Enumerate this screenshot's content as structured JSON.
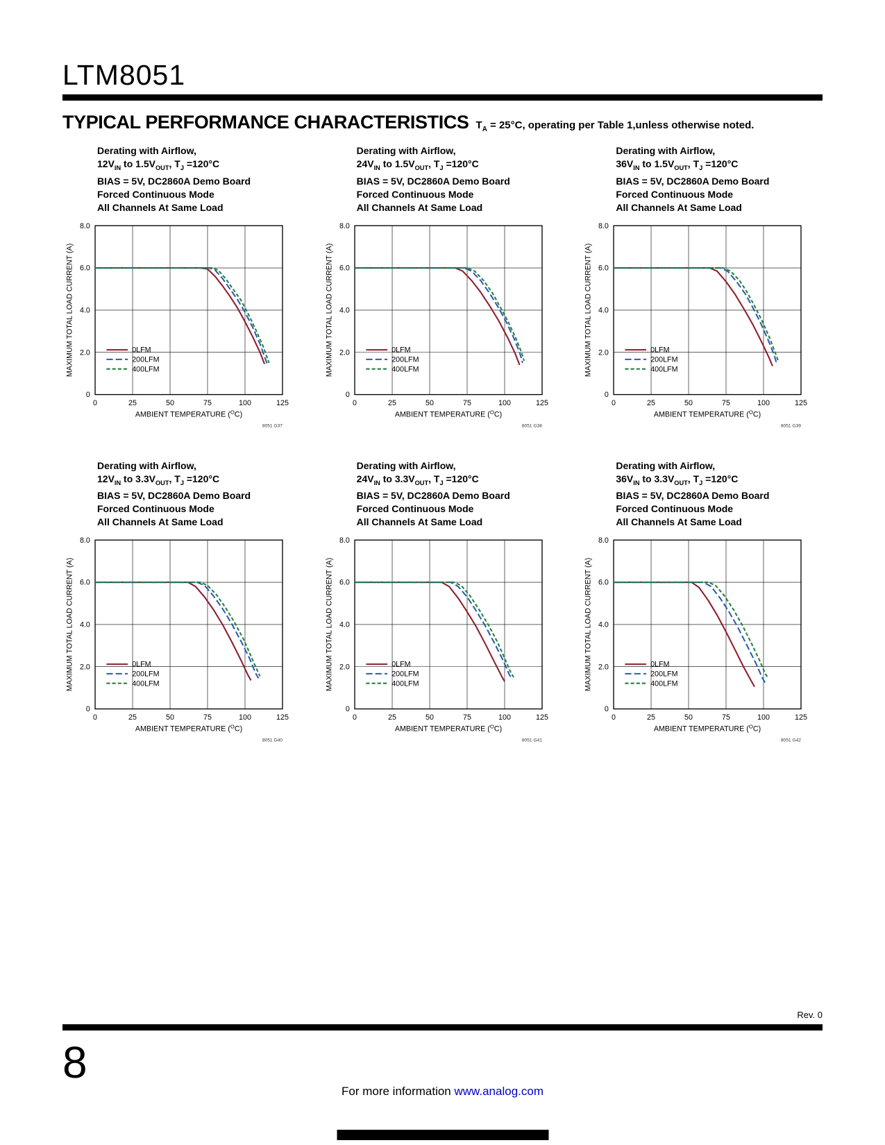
{
  "page": {
    "part_number": "LTM8051",
    "section_title": "TYPICAL PERFORMANCE CHARACTERISTICS",
    "section_note": "T~A~ = 25°C, operating per Table 1,unless otherwise noted.",
    "footer": {
      "rev": "Rev. 0",
      "page_number": "8",
      "info_text": "For more information ",
      "info_link": "www.analog.com",
      "link_color": "#0000cc"
    }
  },
  "chart_common": {
    "type": "line",
    "xlabel": "AMBIENT TEMPERATURE (^O^C)",
    "ylabel": "MAXIMUM TOTAL LOAD CURRENT (A)",
    "xlim": [
      0,
      125
    ],
    "ylim": [
      0,
      8
    ],
    "xticks": [
      0,
      25,
      50,
      75,
      100,
      125
    ],
    "ytick_values": [
      0,
      2,
      4,
      6,
      8
    ],
    "ytick_labels": [
      "0",
      "2.0",
      "4.0",
      "6.0",
      "8.0"
    ],
    "grid": true,
    "legend_position": "lower-left",
    "series_styles": [
      {
        "name": "0LFM",
        "color": "#8e1b2c",
        "dash": []
      },
      {
        "name": "200LFM",
        "color": "#2a5ca9",
        "dash": [
          9,
          4
        ]
      },
      {
        "name": "400LFM",
        "color": "#217f3d",
        "dash": [
          5,
          3
        ]
      }
    ]
  },
  "chart_data": [
    {
      "type": "line",
      "graph_id": "8051 G37",
      "title_lines": [
        "Derating with Airflow,",
        "12V~IN~ to 1.5V~OUT~, T~J~ =120°C",
        "BIAS = 5V, DC2860A Demo Board",
        "Forced Continuous Mode",
        "All Channels At Same Load"
      ],
      "series": [
        {
          "name": "0LFM",
          "points": [
            [
              0,
              6
            ],
            [
              70,
              6
            ],
            [
              75,
              5.95
            ],
            [
              80,
              5.6
            ],
            [
              85,
              5.15
            ],
            [
              90,
              4.65
            ],
            [
              95,
              4.1
            ],
            [
              100,
              3.45
            ],
            [
              105,
              2.75
            ],
            [
              110,
              2.0
            ],
            [
              113,
              1.45
            ]
          ]
        },
        {
          "name": "200LFM",
          "points": [
            [
              0,
              6
            ],
            [
              76,
              6
            ],
            [
              80,
              5.9
            ],
            [
              85,
              5.5
            ],
            [
              90,
              5.0
            ],
            [
              95,
              4.5
            ],
            [
              100,
              3.9
            ],
            [
              105,
              3.2
            ],
            [
              110,
              2.4
            ],
            [
              114,
              1.6
            ],
            [
              115,
              1.4
            ]
          ]
        },
        {
          "name": "400LFM",
          "points": [
            [
              0,
              6
            ],
            [
              78,
              6
            ],
            [
              82,
              5.9
            ],
            [
              87,
              5.5
            ],
            [
              92,
              5.0
            ],
            [
              97,
              4.5
            ],
            [
              102,
              3.85
            ],
            [
              107,
              3.1
            ],
            [
              112,
              2.3
            ],
            [
              115,
              1.7
            ],
            [
              116,
              1.5
            ]
          ]
        }
      ]
    },
    {
      "type": "line",
      "graph_id": "8051 G38",
      "title_lines": [
        "Derating with Airflow,",
        "24V~IN~ to 1.5V~OUT~, T~J~ =120°C",
        "BIAS = 5V, DC2860A Demo Board",
        "Forced Continuous Mode",
        "All Channels At Same Load"
      ],
      "series": [
        {
          "name": "0LFM",
          "points": [
            [
              0,
              6
            ],
            [
              67,
              6
            ],
            [
              72,
              5.85
            ],
            [
              78,
              5.4
            ],
            [
              84,
              4.85
            ],
            [
              90,
              4.2
            ],
            [
              96,
              3.5
            ],
            [
              102,
              2.7
            ],
            [
              107,
              1.95
            ],
            [
              110,
              1.4
            ]
          ]
        },
        {
          "name": "200LFM",
          "points": [
            [
              0,
              6
            ],
            [
              73,
              6
            ],
            [
              78,
              5.85
            ],
            [
              84,
              5.4
            ],
            [
              90,
              4.8
            ],
            [
              96,
              4.1
            ],
            [
              101,
              3.45
            ],
            [
              106,
              2.7
            ],
            [
              110,
              2.0
            ],
            [
              112,
              1.5
            ]
          ]
        },
        {
          "name": "400LFM",
          "points": [
            [
              0,
              6
            ],
            [
              75,
              6
            ],
            [
              80,
              5.85
            ],
            [
              86,
              5.4
            ],
            [
              92,
              4.8
            ],
            [
              97,
              4.15
            ],
            [
              102,
              3.5
            ],
            [
              107,
              2.75
            ],
            [
              111,
              2.05
            ],
            [
              113,
              1.6
            ]
          ]
        }
      ]
    },
    {
      "type": "line",
      "graph_id": "8051 G39",
      "title_lines": [
        "Derating with Airflow,",
        "36V~IN~ to 1.5V~OUT~, T~J~ =120°C",
        "BIAS = 5V, DC2860A Demo Board",
        "Forced Continuous Mode",
        "All Channels At Same Load"
      ],
      "series": [
        {
          "name": "0LFM",
          "points": [
            [
              0,
              6
            ],
            [
              64,
              6
            ],
            [
              69,
              5.85
            ],
            [
              75,
              5.35
            ],
            [
              81,
              4.75
            ],
            [
              87,
              4.05
            ],
            [
              93,
              3.3
            ],
            [
              99,
              2.45
            ],
            [
              104,
              1.7
            ],
            [
              106,
              1.35
            ]
          ]
        },
        {
          "name": "200LFM",
          "points": [
            [
              0,
              6
            ],
            [
              71,
              6
            ],
            [
              76,
              5.85
            ],
            [
              82,
              5.35
            ],
            [
              88,
              4.75
            ],
            [
              93,
              4.1
            ],
            [
              98,
              3.4
            ],
            [
              103,
              2.6
            ],
            [
              107,
              1.9
            ],
            [
              109,
              1.4
            ]
          ]
        },
        {
          "name": "400LFM",
          "points": [
            [
              0,
              6
            ],
            [
              73,
              6
            ],
            [
              78,
              5.85
            ],
            [
              84,
              5.4
            ],
            [
              89,
              4.85
            ],
            [
              94,
              4.2
            ],
            [
              99,
              3.5
            ],
            [
              104,
              2.7
            ],
            [
              108,
              1.95
            ],
            [
              110,
              1.55
            ]
          ]
        }
      ]
    },
    {
      "type": "line",
      "graph_id": "8051 G40",
      "title_lines": [
        "Derating with Airflow,",
        "12V~IN~ to 3.3V~OUT~, T~J~ =120°C",
        "BIAS = 5V, DC2860A Demo Board",
        "Forced Continuous Mode",
        "All Channels At Same Load"
      ],
      "series": [
        {
          "name": "0LFM",
          "points": [
            [
              0,
              6
            ],
            [
              62,
              6
            ],
            [
              67,
              5.8
            ],
            [
              73,
              5.3
            ],
            [
              79,
              4.7
            ],
            [
              85,
              4.0
            ],
            [
              91,
              3.2
            ],
            [
              97,
              2.35
            ],
            [
              102,
              1.6
            ],
            [
              104,
              1.35
            ]
          ]
        },
        {
          "name": "200LFM",
          "points": [
            [
              0,
              6
            ],
            [
              68,
              6
            ],
            [
              73,
              5.85
            ],
            [
              79,
              5.35
            ],
            [
              85,
              4.75
            ],
            [
              91,
              4.05
            ],
            [
              97,
              3.25
            ],
            [
              103,
              2.4
            ],
            [
              107,
              1.7
            ],
            [
              109,
              1.45
            ]
          ]
        },
        {
          "name": "400LFM",
          "points": [
            [
              0,
              6
            ],
            [
              70,
              6
            ],
            [
              75,
              5.85
            ],
            [
              81,
              5.4
            ],
            [
              87,
              4.8
            ],
            [
              93,
              4.1
            ],
            [
              99,
              3.3
            ],
            [
              104,
              2.5
            ],
            [
              108,
              1.85
            ],
            [
              110,
              1.55
            ]
          ]
        }
      ]
    },
    {
      "type": "line",
      "graph_id": "8051 G41",
      "title_lines": [
        "Derating with Airflow,",
        "24V~IN~ to 3.3V~OUT~, T~J~ =120°C",
        "BIAS = 5V, DC2860A Demo Board",
        "Forced Continuous Mode",
        "All Channels At Same Load"
      ],
      "series": [
        {
          "name": "0LFM",
          "points": [
            [
              0,
              6
            ],
            [
              58,
              6
            ],
            [
              63,
              5.8
            ],
            [
              69,
              5.25
            ],
            [
              75,
              4.6
            ],
            [
              81,
              3.9
            ],
            [
              87,
              3.1
            ],
            [
              93,
              2.25
            ],
            [
              98,
              1.55
            ],
            [
              100,
              1.3
            ]
          ]
        },
        {
          "name": "200LFM",
          "points": [
            [
              0,
              6
            ],
            [
              64,
              6
            ],
            [
              69,
              5.8
            ],
            [
              75,
              5.3
            ],
            [
              81,
              4.65
            ],
            [
              87,
              3.95
            ],
            [
              93,
              3.15
            ],
            [
              99,
              2.3
            ],
            [
              103,
              1.65
            ],
            [
              105,
              1.4
            ]
          ]
        },
        {
          "name": "400LFM",
          "points": [
            [
              0,
              6
            ],
            [
              66,
              6
            ],
            [
              71,
              5.85
            ],
            [
              77,
              5.35
            ],
            [
              83,
              4.7
            ],
            [
              89,
              4.0
            ],
            [
              95,
              3.2
            ],
            [
              100,
              2.4
            ],
            [
              104,
              1.75
            ],
            [
              106,
              1.5
            ]
          ]
        }
      ]
    },
    {
      "type": "line",
      "graph_id": "8051 G42",
      "title_lines": [
        "Derating with Airflow,",
        "36V~IN~ to 3.3V~OUT~, T~J~ =120°C",
        "BIAS = 5V, DC2860A Demo Board",
        "Forced Continuous Mode",
        "All Channels At Same Load"
      ],
      "series": [
        {
          "name": "0LFM",
          "points": [
            [
              0,
              6
            ],
            [
              52,
              6
            ],
            [
              57,
              5.75
            ],
            [
              63,
              5.15
            ],
            [
              69,
              4.45
            ],
            [
              75,
              3.65
            ],
            [
              81,
              2.8
            ],
            [
              87,
              1.95
            ],
            [
              92,
              1.3
            ],
            [
              94,
              1.05
            ]
          ]
        },
        {
          "name": "200LFM",
          "points": [
            [
              0,
              6
            ],
            [
              60,
              6
            ],
            [
              65,
              5.8
            ],
            [
              71,
              5.25
            ],
            [
              77,
              4.6
            ],
            [
              83,
              3.85
            ],
            [
              89,
              3.0
            ],
            [
              95,
              2.15
            ],
            [
              99,
              1.5
            ],
            [
              101,
              1.25
            ]
          ]
        },
        {
          "name": "400LFM",
          "points": [
            [
              0,
              6
            ],
            [
              63,
              6
            ],
            [
              68,
              5.85
            ],
            [
              74,
              5.35
            ],
            [
              80,
              4.7
            ],
            [
              86,
              3.95
            ],
            [
              92,
              3.1
            ],
            [
              97,
              2.35
            ],
            [
              101,
              1.7
            ],
            [
              103,
              1.45
            ]
          ]
        }
      ]
    }
  ]
}
